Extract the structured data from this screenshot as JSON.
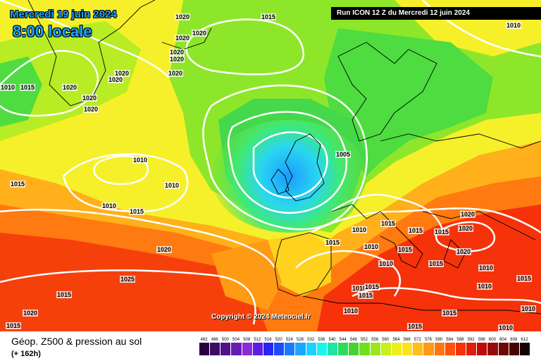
{
  "header": {
    "date": "Mercredi 19 juin 2024",
    "time": "8:00 locale",
    "run": "Run ICON 12 Z du Mercredi 12 juin 2024"
  },
  "copyright": "Copyright © 2024 Meteociel.fr",
  "caption": {
    "title": "Géop. Z500 & pression au sol",
    "subtitle": "(+ 162h)"
  },
  "isobar_labels": [
    "1015",
    "1020",
    "1020",
    "1020",
    "1020",
    "1020",
    "1020",
    "1020",
    "1020",
    "1010",
    "1015",
    "1020",
    "1020",
    "1020",
    "1010",
    "1010",
    "1015",
    "1010",
    "1015",
    "1005",
    "1020",
    "1025",
    "1015",
    "1020",
    "1015",
    "1010",
    "1015",
    "1015",
    "1015",
    "1020",
    "1020",
    "1015",
    "1010",
    "1010",
    "1015",
    "1020",
    "1015",
    "1010",
    "1015",
    "1010",
    "1010",
    "1015",
    "1010",
    "1015",
    "1015",
    "1010",
    "1015",
    "1010",
    "1010"
  ],
  "legend": {
    "values": [
      "492",
      "496",
      "500",
      "504",
      "508",
      "512",
      "516",
      "520",
      "524",
      "528",
      "532",
      "536",
      "540",
      "544",
      "548",
      "552",
      "556",
      "560",
      "564",
      "568",
      "572",
      "576",
      "580",
      "584",
      "588",
      "592",
      "596",
      "600",
      "604",
      "608",
      "612"
    ],
    "colors": [
      "#2a0040",
      "#3d0a66",
      "#53128c",
      "#6a1cb3",
      "#8a2ad9",
      "#5a1ee6",
      "#2626f0",
      "#1a4cff",
      "#1a7aff",
      "#1aa6ff",
      "#1ad2ff",
      "#1af5ec",
      "#1ee6a0",
      "#2bdb5c",
      "#46d232",
      "#6fe01e",
      "#9ae81a",
      "#c8f01a",
      "#eef01e",
      "#ffe21e",
      "#ffbe1a",
      "#ff9a14",
      "#ff7610",
      "#ff520c",
      "#f5320a",
      "#e01c0a",
      "#c00a0a",
      "#960a0a",
      "#6e0808",
      "#460505",
      "#140202"
    ]
  }
}
